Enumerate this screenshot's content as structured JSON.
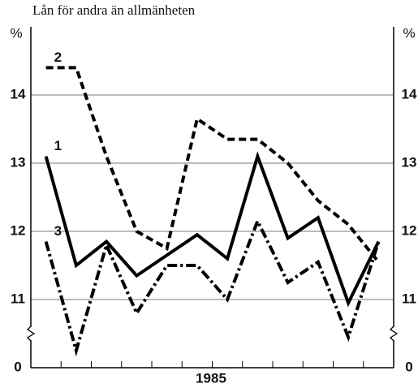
{
  "chart_data": {
    "type": "line",
    "title": "Lån för andra än allmänheten",
    "ylabel": "%",
    "xlabel": "1985",
    "categories": [
      null,
      null,
      null,
      null,
      null,
      null,
      null,
      null,
      null,
      null,
      null,
      null
    ],
    "series": [
      {
        "name": "1",
        "color": "#000000",
        "style": "solid",
        "values": [
          13.1,
          11.5,
          11.85,
          11.35,
          11.65,
          11.95,
          11.6,
          13.1,
          11.9,
          12.2,
          10.95,
          11.85
        ]
      },
      {
        "name": "2",
        "color": "#000000",
        "style": "dashed",
        "values": [
          14.4,
          14.4,
          13.1,
          12.0,
          11.75,
          13.65,
          13.35,
          13.35,
          13.0,
          12.45,
          12.1,
          11.55
        ]
      },
      {
        "name": "3",
        "color": "#000000",
        "style": "dashdot",
        "values": [
          11.85,
          10.25,
          11.8,
          10.8,
          11.5,
          11.5,
          11.0,
          12.15,
          11.25,
          11.55,
          10.45,
          11.85
        ]
      }
    ],
    "ylim": [
      10,
      15
    ],
    "yticks": [
      {
        "value": 10,
        "label": "0"
      },
      11,
      12,
      13,
      14
    ],
    "axis_break": true,
    "grid": true
  }
}
